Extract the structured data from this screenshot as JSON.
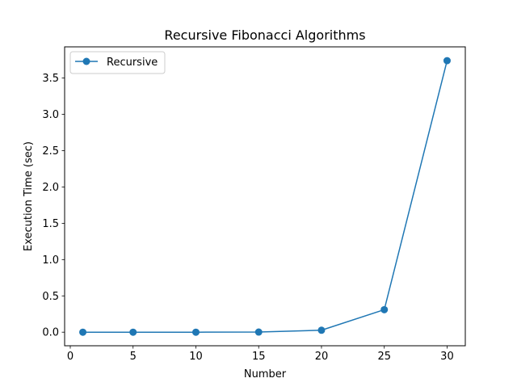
{
  "chart_data": {
    "type": "line",
    "title": "Recursive Fibonacci Algorithms",
    "xlabel": "Number",
    "ylabel": "Execution Time (sec)",
    "xlim": [
      -0.45,
      31.45
    ],
    "ylim": [
      -0.187,
      3.93
    ],
    "x_ticks": [
      0,
      5,
      10,
      15,
      20,
      25,
      30
    ],
    "y_ticks": [
      0.0,
      0.5,
      1.0,
      1.5,
      2.0,
      2.5,
      3.0,
      3.5
    ],
    "x_tick_labels": [
      "0",
      "5",
      "10",
      "15",
      "20",
      "25",
      "30"
    ],
    "y_tick_labels": [
      "0.0",
      "0.5",
      "1.0",
      "1.5",
      "2.0",
      "2.5",
      "3.0",
      "3.5"
    ],
    "grid": false,
    "legend_position": "upper-left",
    "series": [
      {
        "name": "Recursive",
        "color": "#1f77b4",
        "marker": "circle",
        "x": [
          1,
          5,
          10,
          15,
          20,
          25,
          30
        ],
        "y": [
          0.0,
          0.0,
          0.0,
          0.002,
          0.027,
          0.31,
          3.74
        ]
      }
    ]
  }
}
